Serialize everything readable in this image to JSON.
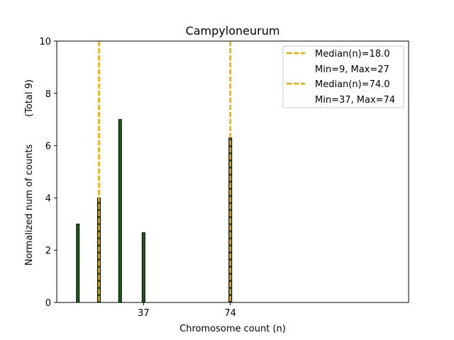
{
  "chart_data": {
    "type": "bar",
    "title": "Campyloneurum",
    "xlabel": "Chromosome count (n)",
    "ylabel": "Normalized num of counts",
    "ylabel_total": "(Total 9)",
    "xlim": [
      0,
      150
    ],
    "ylim": [
      0,
      10
    ],
    "xticks": [
      37,
      74
    ],
    "yticks": [
      0,
      2,
      4,
      6,
      8,
      10
    ],
    "bars": [
      {
        "x": 9,
        "value": 3.0
      },
      {
        "x": 18,
        "value": 4.0
      },
      {
        "x": 27,
        "value": 7.0
      },
      {
        "x": 37,
        "value": 2.67
      },
      {
        "x": 74,
        "value": 6.3
      }
    ],
    "bar_color": "#1a5c1a",
    "median_lines": [
      {
        "x": 18,
        "label": "Median(n)=18.0",
        "range_label": "Min=9, Max=27",
        "color": "#f0a800"
      },
      {
        "x": 74,
        "label": "Median(n)=74.0",
        "range_label": "Min=37, Max=74",
        "color": "#f0a800"
      }
    ],
    "legend_position": "top-right",
    "grid": false
  }
}
